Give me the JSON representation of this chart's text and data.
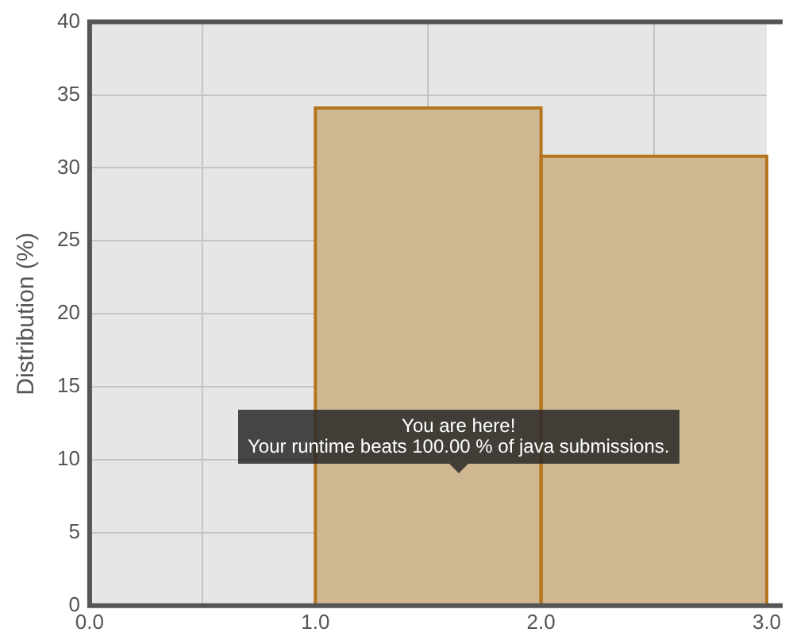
{
  "chart_data": {
    "type": "histogram",
    "ylabel": "Distribution (%)",
    "bins": [
      1,
      2,
      3
    ],
    "values": [
      34.1,
      30.8
    ],
    "color": "#cfb891",
    "xlim": [
      0,
      3
    ],
    "xticks": [
      {
        "value": 0,
        "label": "0.0"
      },
      {
        "value": 1,
        "label": "1.0"
      },
      {
        "value": 2,
        "label": "2.0"
      },
      {
        "value": 3,
        "label": "3.0"
      }
    ],
    "ylim": [
      0,
      40
    ],
    "yticks": [
      0,
      5,
      10,
      15,
      20,
      25,
      30,
      35,
      40
    ],
    "grid": true,
    "legend": false,
    "annotations": [
      "You are here!\nYour runtime beats 100.00 % of java submissions."
    ]
  }
}
